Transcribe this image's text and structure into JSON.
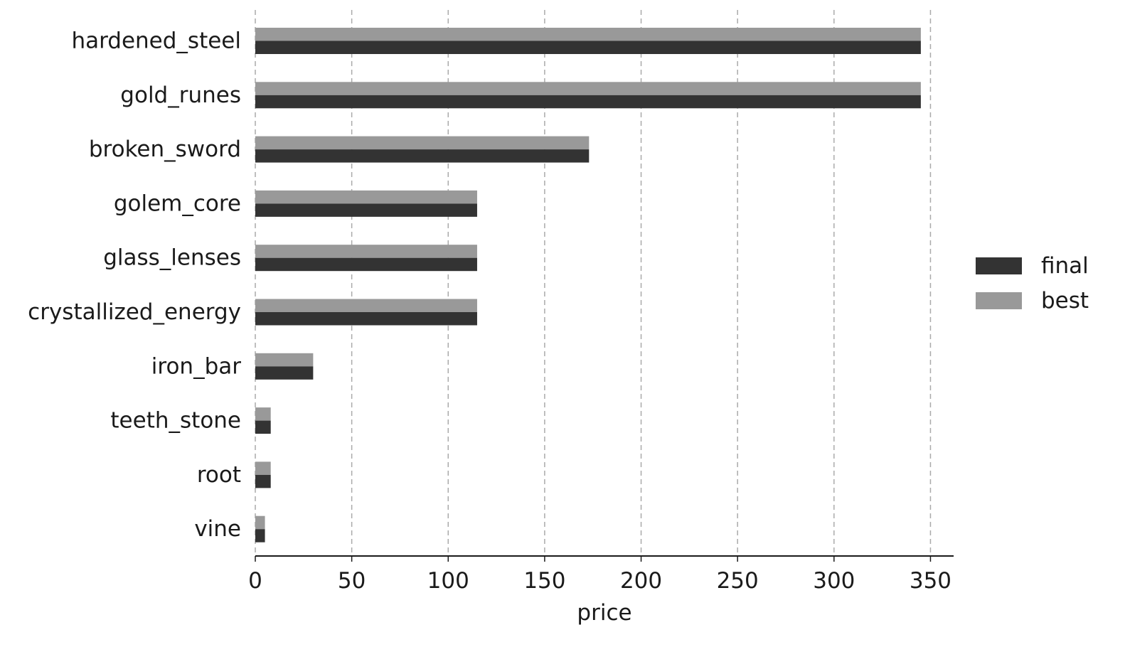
{
  "chart_data": {
    "type": "bar",
    "orientation": "horizontal",
    "categories": [
      "hardened_steel",
      "gold_runes",
      "broken_sword",
      "golem_core",
      "glass_lenses",
      "crystallized_energy",
      "iron_bar",
      "teeth_stone",
      "root",
      "vine"
    ],
    "series": [
      {
        "name": "best",
        "color": "#999999",
        "values": [
          345,
          345,
          173,
          115,
          115,
          115,
          30,
          8,
          8,
          5
        ]
      },
      {
        "name": "final",
        "color": "#333333",
        "values": [
          345,
          345,
          173,
          115,
          115,
          115,
          30,
          8,
          8,
          5
        ]
      }
    ],
    "xlabel": "price",
    "ylabel": "",
    "title": "",
    "xlim": [
      0,
      362
    ],
    "xticks": [
      0,
      50,
      100,
      150,
      200,
      250,
      300,
      350
    ],
    "grid": "x-dashed",
    "legend": {
      "placement": "right",
      "entries": [
        {
          "label": "final",
          "color": "#333333"
        },
        {
          "label": "best",
          "color": "#999999"
        }
      ]
    }
  }
}
